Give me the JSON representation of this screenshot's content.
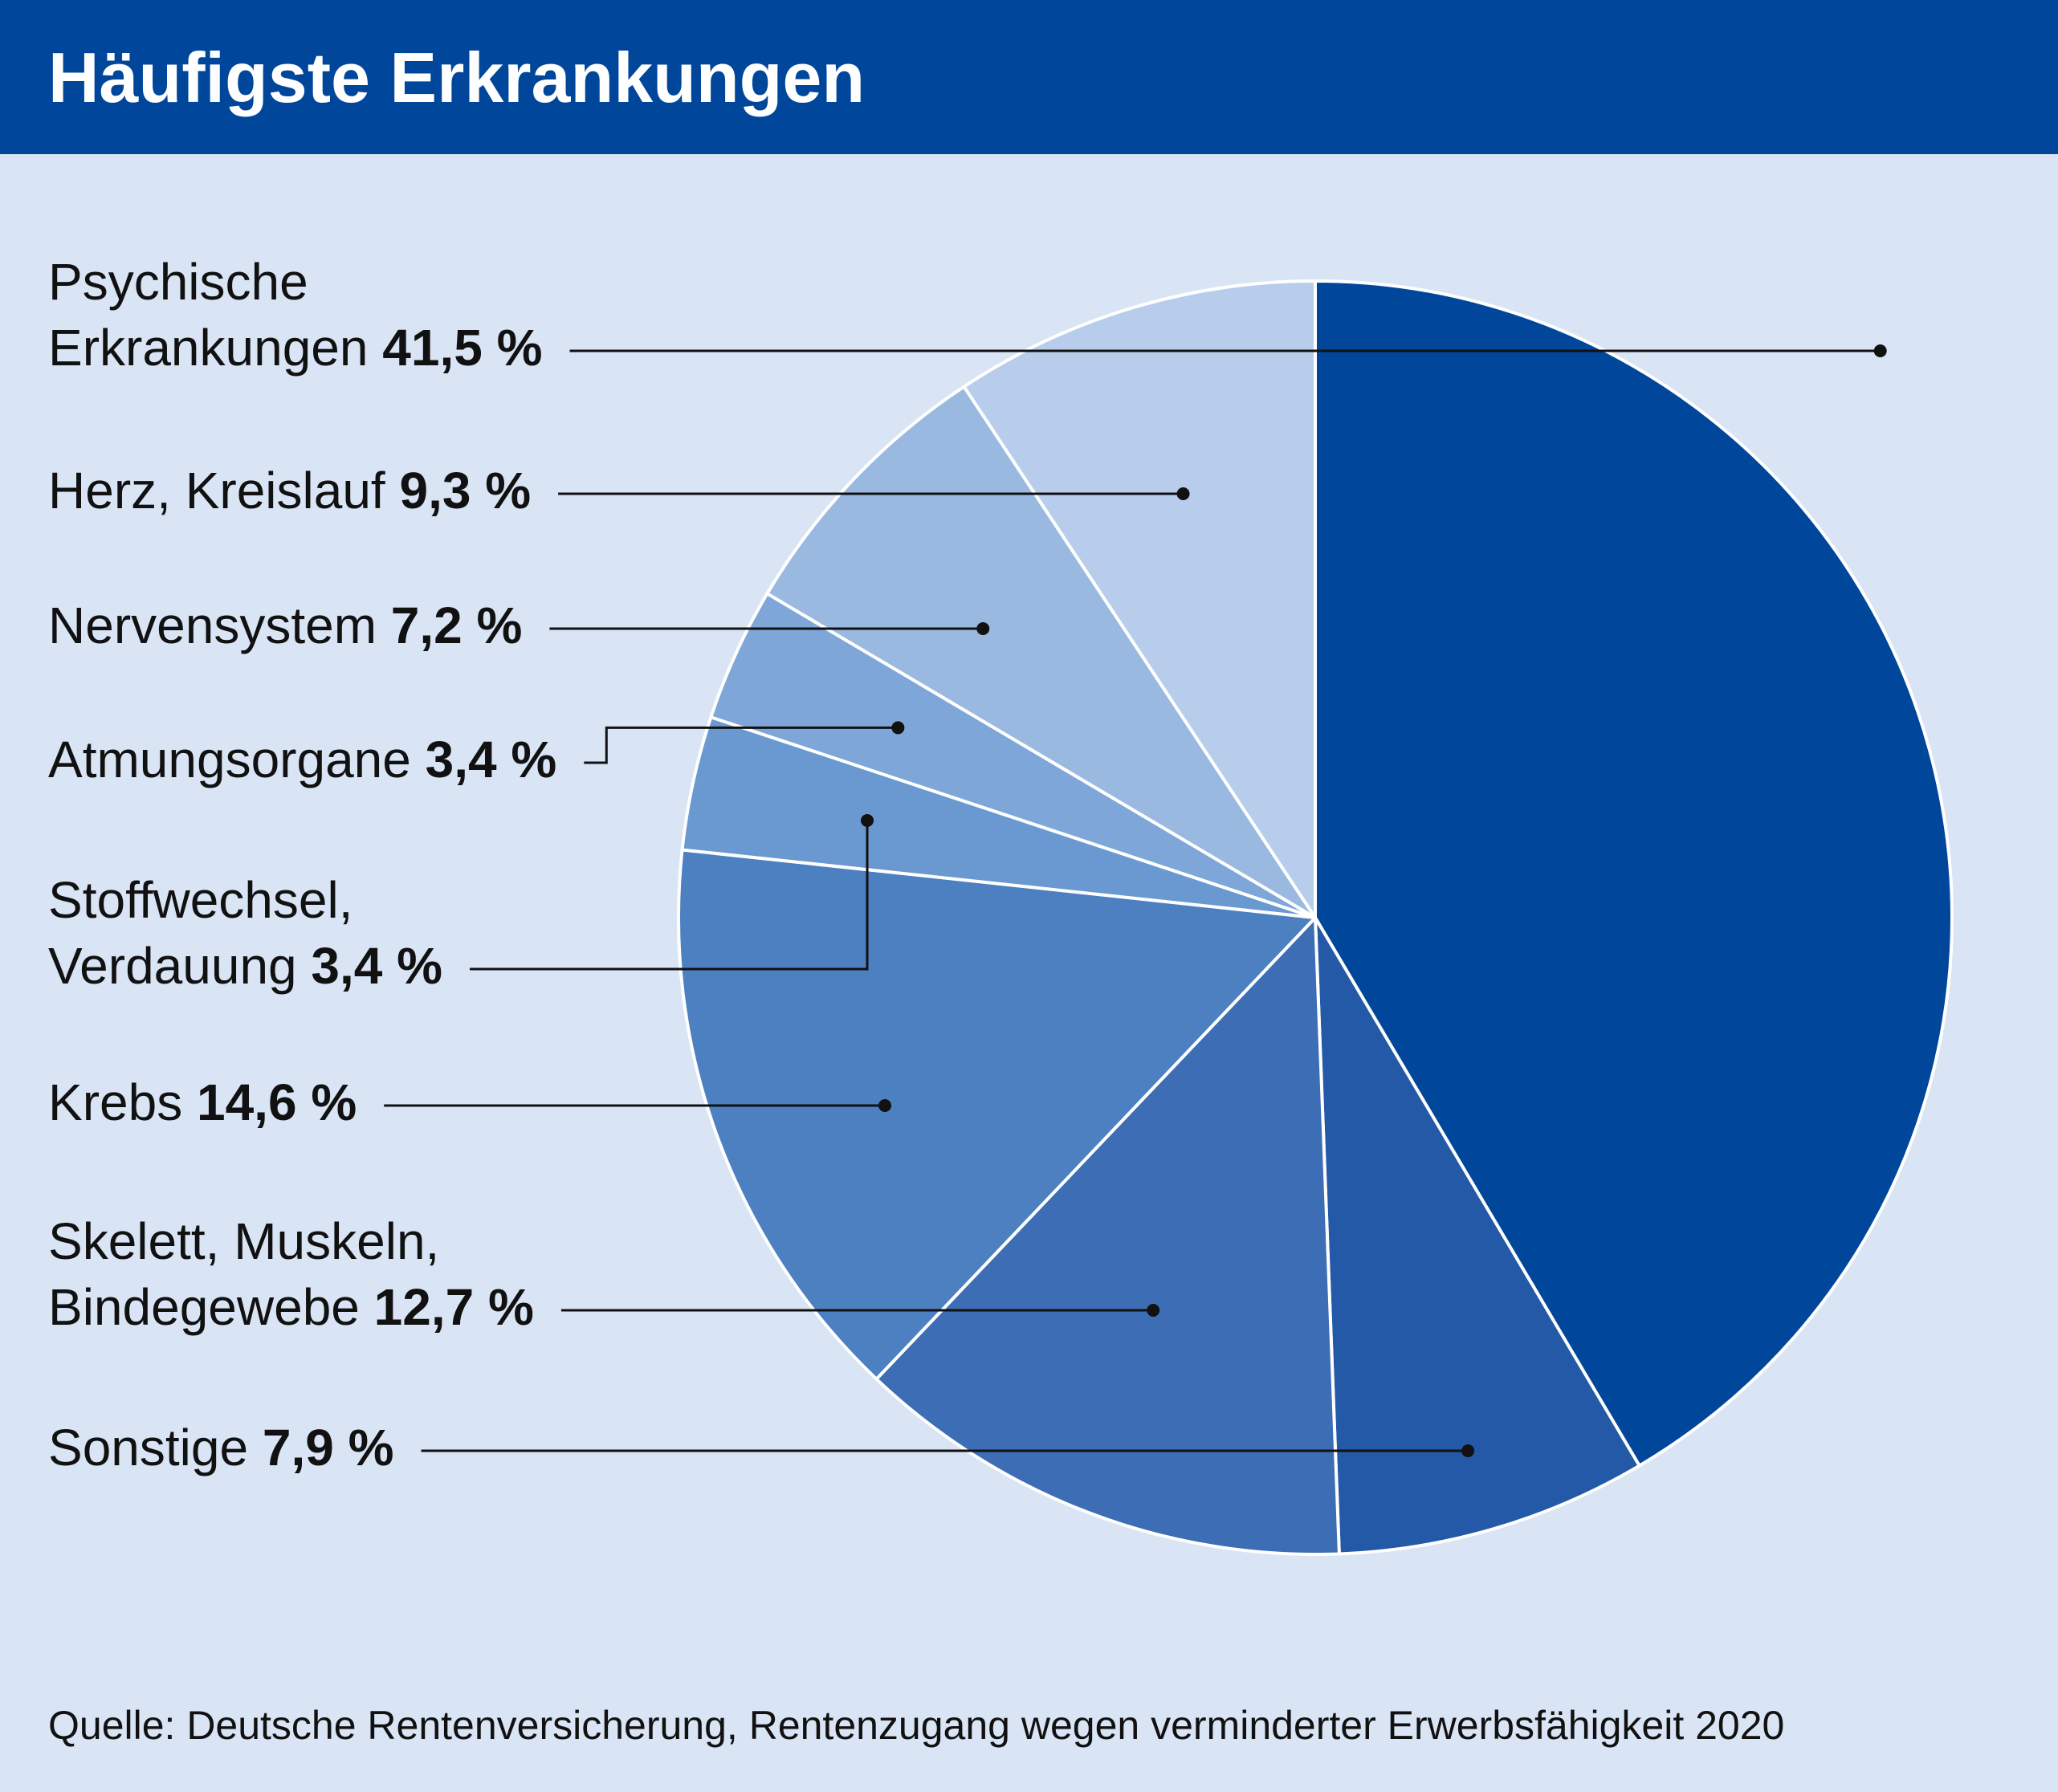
{
  "title": "Häufigste Erkrankungen",
  "source": "Quelle: Deutsche Rentenversicherung, Rentenzugang wegen verminderter Erwerbsfähigkeit 2020",
  "colors": {
    "header": "#00479b",
    "background": "#d9e4f5",
    "slice_edge": "#ffffff"
  },
  "chart_data": {
    "type": "pie",
    "title": "Häufigste Erkrankungen",
    "unit": "%",
    "start": "12 o'clock",
    "direction": "clockwise",
    "legend": "labels-left-with-leader-lines",
    "slices": [
      {
        "label_lines": [
          "Psychische",
          "Erkrankungen"
        ],
        "value": 41.5,
        "value_label": "41,5 %",
        "color": "#00479b"
      },
      {
        "label_lines": [
          "Sonstige"
        ],
        "value": 7.9,
        "value_label": "7,9 %",
        "color": "#2359a7"
      },
      {
        "label_lines": [
          "Skelett, Muskeln,",
          "Bindegewebe"
        ],
        "value": 12.7,
        "value_label": "12,7 %",
        "color": "#3c6db5"
      },
      {
        "label_lines": [
          "Krebs"
        ],
        "value": 14.6,
        "value_label": "14,6 %",
        "color": "#4c80c1"
      },
      {
        "label_lines": [
          "Stoffwechsel,",
          "Verdauung"
        ],
        "value": 3.4,
        "value_label": "3,4 %",
        "color": "#6a98d1"
      },
      {
        "label_lines": [
          "Atmungsorgane"
        ],
        "value": 3.4,
        "value_label": "3,4 %",
        "color": "#7ea6d8"
      },
      {
        "label_lines": [
          "Nervensystem"
        ],
        "value": 7.2,
        "value_label": "7,2 %",
        "color": "#9ab9e1"
      },
      {
        "label_lines": [
          "Herz, Kreislauf"
        ],
        "value": 9.3,
        "value_label": "9,3 %",
        "color": "#b8cdeb"
      }
    ]
  }
}
